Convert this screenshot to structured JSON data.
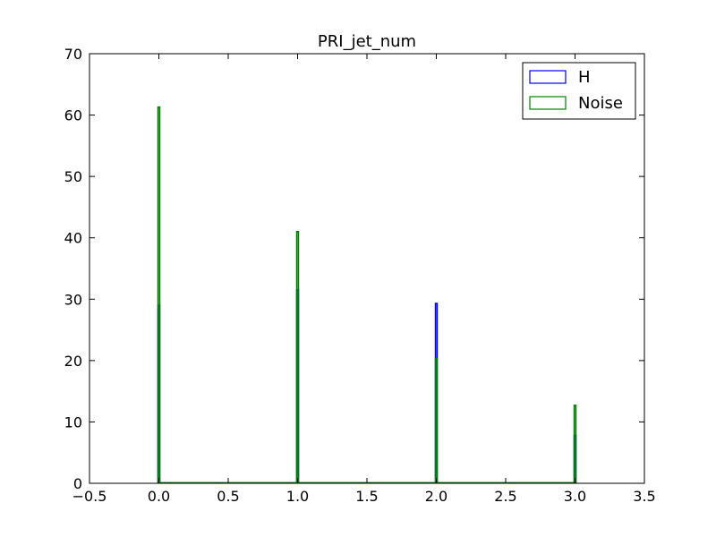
{
  "chart_data": {
    "type": "bar",
    "title": "PRI_jet_num",
    "xlabel": "",
    "ylabel": "",
    "xlim": [
      -0.5,
      3.5
    ],
    "ylim": [
      0,
      70
    ],
    "xticks": [
      "−0.5",
      "0.0",
      "0.5",
      "1.0",
      "1.5",
      "2.0",
      "2.5",
      "3.0",
      "3.5"
    ],
    "yticks": [
      "0",
      "10",
      "20",
      "30",
      "40",
      "50",
      "60",
      "70"
    ],
    "grid": false,
    "legend": {
      "placement": "top-right"
    },
    "x": [
      0,
      1,
      2,
      3
    ],
    "series": [
      {
        "name": "H",
        "color": "#0000ff",
        "values": [
          29,
          31.5,
          29.3,
          7.8
        ]
      },
      {
        "name": "Noise",
        "color": "#008000",
        "values": [
          61.3,
          41,
          20.3,
          12.7
        ]
      }
    ]
  }
}
